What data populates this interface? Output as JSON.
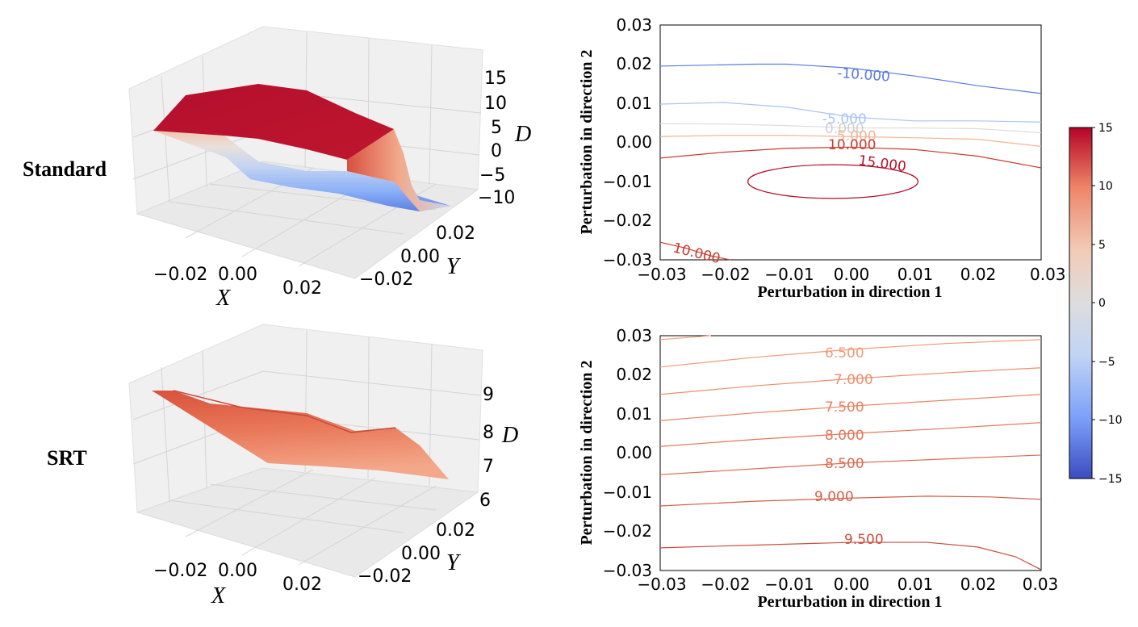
{
  "row_labels": {
    "top": "Standard",
    "bottom": "SRT"
  },
  "surface_axes": {
    "x_var": "X",
    "y_var": "Y",
    "z_var": "D"
  },
  "chart_data": [
    {
      "type": "surface3d",
      "name": "Standard",
      "x_ticks": [
        "−0.02",
        "0.00",
        "0.02"
      ],
      "y_ticks": [
        "−0.02",
        "0.00",
        "0.02"
      ],
      "z_ticks": [
        "15",
        "10",
        "5",
        "0",
        "−5",
        "−10"
      ],
      "xlabel": "X",
      "ylabel": "Y",
      "zlabel": "D",
      "zlim": [
        -12,
        16
      ]
    },
    {
      "type": "contour",
      "name": "Standard",
      "xlabel": "Perturbation in direction 1",
      "ylabel": "Perturbation in direction 2",
      "xlim": [
        -0.03,
        0.03
      ],
      "ylim": [
        -0.03,
        0.03
      ],
      "x_ticks": [
        "−0.03",
        "−0.02",
        "−0.01",
        "0.00",
        "0.01",
        "0.02",
        "0.03"
      ],
      "y_ticks": [
        "0.03",
        "0.02",
        "0.01",
        "0.00",
        "−0.01",
        "−0.02",
        "−0.03"
      ],
      "contours": [
        {
          "level": -10,
          "label": "-10.000",
          "color": "#5a7be0",
          "points": [
            [
              -0.03,
              0.0195
            ],
            [
              -0.015,
              0.02
            ],
            [
              -0.01,
              0.02
            ],
            [
              0.0,
              0.019
            ],
            [
              0.01,
              0.017
            ],
            [
              0.02,
              0.0145
            ],
            [
              0.03,
              0.0125
            ]
          ]
        },
        {
          "level": -5,
          "label": "-5.000",
          "color": "#a9c4f3",
          "points": [
            [
              -0.03,
              0.0098
            ],
            [
              -0.02,
              0.0102
            ],
            [
              -0.01,
              0.009
            ],
            [
              0.0,
              0.0065
            ],
            [
              0.01,
              0.0055
            ],
            [
              0.02,
              0.0055
            ],
            [
              0.03,
              0.0052
            ]
          ]
        },
        {
          "level": 0,
          "label": "0.000",
          "color": "#dcdcdc",
          "points": [
            [
              -0.03,
              0.0048
            ],
            [
              -0.02,
              0.0047
            ],
            [
              -0.01,
              0.0043
            ],
            [
              0.0,
              0.0037
            ],
            [
              0.01,
              0.0037
            ],
            [
              0.02,
              0.0035
            ],
            [
              0.03,
              0.0025
            ]
          ]
        },
        {
          "level": 5,
          "label": "5.000",
          "color": "#f3b494",
          "points": [
            [
              -0.03,
              0.0015
            ],
            [
              -0.02,
              0.0018
            ],
            [
              -0.01,
              0.0018
            ],
            [
              0.0,
              0.0015
            ],
            [
              0.01,
              0.0012
            ],
            [
              0.02,
              0.0008
            ],
            [
              0.03,
              -0.001
            ]
          ]
        },
        {
          "level": 10,
          "label": "10.000",
          "color": "#cc3b30",
          "points": [
            [
              -0.03,
              -0.004
            ],
            [
              -0.02,
              -0.0025
            ],
            [
              -0.01,
              -0.0015
            ],
            [
              0.0,
              -0.0012
            ],
            [
              0.01,
              -0.0018
            ],
            [
              0.02,
              -0.0035
            ],
            [
              0.03,
              -0.0065
            ]
          ]
        },
        {
          "level": 15,
          "label": "15.000",
          "color": "#b40f2b",
          "ellipse": {
            "cx": -0.0028,
            "cy": -0.01,
            "rx": 0.0134,
            "ry": 0.0043
          }
        },
        {
          "level": 10,
          "label": "10.000",
          "color": "#cc3b30",
          "points": [
            [
              -0.03,
              -0.0255
            ],
            [
              -0.026,
              -0.027
            ],
            [
              -0.022,
              -0.029
            ],
            [
              -0.019,
              -0.03
            ]
          ]
        }
      ]
    },
    {
      "type": "surface3d",
      "name": "SRT",
      "x_ticks": [
        "−0.02",
        "0.00",
        "0.02"
      ],
      "y_ticks": [
        "−0.02",
        "0.00",
        "0.02"
      ],
      "z_ticks": [
        "9",
        "8",
        "7",
        "6"
      ],
      "xlabel": "X",
      "ylabel": "Y",
      "zlabel": "D",
      "zlim": [
        6,
        9.6
      ]
    },
    {
      "type": "contour",
      "name": "SRT",
      "xlabel": "Perturbation in direction 1",
      "ylabel": "Perturbation in direction 2",
      "xlim": [
        -0.03,
        0.03
      ],
      "ylim": [
        -0.03,
        0.03
      ],
      "x_ticks": [
        "−0.03",
        "−0.02",
        "−0.01",
        "0.00",
        "0.01",
        "0.02",
        "0.03"
      ],
      "y_ticks": [
        "0.03",
        "0.02",
        "0.01",
        "0.00",
        "−0.01",
        "−0.02",
        "−0.03"
      ],
      "contours": [
        {
          "level": 6.0,
          "label": "",
          "color": "#f4a582",
          "points": [
            [
              -0.03,
              0.029
            ],
            [
              -0.022,
              0.03
            ]
          ]
        },
        {
          "level": 6.5,
          "label": "6.500",
          "color": "#f29a78",
          "points": [
            [
              -0.03,
              0.022
            ],
            [
              -0.015,
              0.0245
            ],
            [
              0.0,
              0.0265
            ],
            [
              0.015,
              0.028
            ],
            [
              0.03,
              0.029
            ]
          ]
        },
        {
          "level": 7.0,
          "label": "7.000",
          "color": "#ee8e6d",
          "points": [
            [
              -0.03,
              0.015
            ],
            [
              -0.015,
              0.0172
            ],
            [
              0.0,
              0.019
            ],
            [
              0.015,
              0.0205
            ],
            [
              0.03,
              0.0218
            ]
          ]
        },
        {
          "level": 7.5,
          "label": "7.500",
          "color": "#e98263",
          "points": [
            [
              -0.03,
              0.0083
            ],
            [
              -0.015,
              0.0103
            ],
            [
              0.0,
              0.012
            ],
            [
              0.015,
              0.0135
            ],
            [
              0.03,
              0.015
            ]
          ]
        },
        {
          "level": 8.0,
          "label": "8.000",
          "color": "#e4765a",
          "points": [
            [
              -0.03,
              0.0017
            ],
            [
              -0.015,
              0.0035
            ],
            [
              0.0,
              0.005
            ],
            [
              0.015,
              0.0063
            ],
            [
              0.03,
              0.0078
            ]
          ]
        },
        {
          "level": 8.5,
          "label": "8.500",
          "color": "#de6a51",
          "points": [
            [
              -0.03,
              -0.0055
            ],
            [
              -0.015,
              -0.004
            ],
            [
              0.0,
              -0.0025
            ],
            [
              0.015,
              -0.0015
            ],
            [
              0.03,
              -0.0005
            ]
          ]
        },
        {
          "level": 9.0,
          "label": "9.000",
          "color": "#d65d48",
          "points": [
            [
              -0.03,
              -0.0135
            ],
            [
              -0.015,
              -0.0123
            ],
            [
              0.0,
              -0.0115
            ],
            [
              0.012,
              -0.011
            ],
            [
              0.022,
              -0.0112
            ],
            [
              0.03,
              -0.0118
            ]
          ]
        },
        {
          "level": 9.5,
          "label": "9.500",
          "color": "#cc4d3e",
          "points": [
            [
              -0.03,
              -0.0242
            ],
            [
              -0.015,
              -0.0235
            ],
            [
              0.0,
              -0.0228
            ],
            [
              0.012,
              -0.0228
            ],
            [
              0.02,
              -0.024
            ],
            [
              0.026,
              -0.0265
            ],
            [
              0.03,
              -0.0298
            ]
          ]
        }
      ]
    },
    {
      "type": "colorbar",
      "ticks": [
        "15",
        "10",
        "5",
        "0",
        "−5",
        "−10",
        "−15"
      ],
      "range": [
        -15,
        15
      ],
      "cmap": [
        "#3b4cc0",
        "#7b9ff9",
        "#c0d4f5",
        "#dddddd",
        "#f2cbb7",
        "#ee8468",
        "#b40426"
      ]
    }
  ]
}
